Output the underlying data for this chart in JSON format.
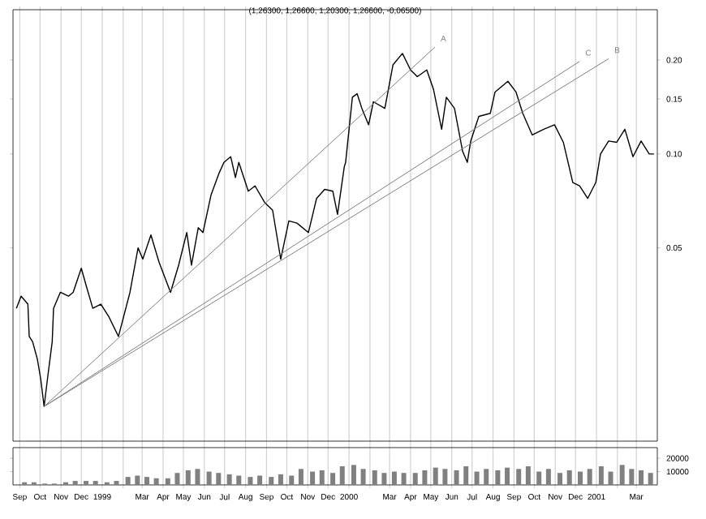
{
  "chart_data": [
    {
      "type": "line",
      "title": "(1,26300, 1,26600, 1,20300, 1,26600, -0,06500)",
      "xlim": [
        "1998-08-22",
        "2001-04-01"
      ],
      "ylim": [
        0.012,
        0.29
      ],
      "log": "y",
      "grid": "x",
      "tick_labels": "y",
      "yticks": [
        {
          "value": 0.05,
          "label": "0.05"
        },
        {
          "value": 0.1,
          "label": "0.10"
        },
        {
          "value": 0.15,
          "label": "0.15"
        },
        {
          "value": 0.2,
          "label": "0.20"
        }
      ],
      "xticks": [
        {
          "value": "1998-09-01",
          "label": null
        },
        {
          "value": "1998-10-01",
          "label": null
        },
        {
          "value": "1998-11-01",
          "label": null
        },
        {
          "value": "1998-12-01",
          "label": null
        },
        {
          "value": "1999-01-01",
          "label": null
        },
        {
          "value": "1999-02-01",
          "label": null
        },
        {
          "value": "1999-03-01",
          "label": null
        },
        {
          "value": "1999-04-01",
          "label": null
        },
        {
          "value": "1999-05-01",
          "label": null
        },
        {
          "value": "1999-06-01",
          "label": null
        },
        {
          "value": "1999-07-01",
          "label": null
        },
        {
          "value": "1999-08-01",
          "label": null
        },
        {
          "value": "1999-09-01",
          "label": null
        },
        {
          "value": "1999-10-01",
          "label": null
        },
        {
          "value": "1999-11-01",
          "label": null
        },
        {
          "value": "1999-12-01",
          "label": null
        },
        {
          "value": "2000-01-01",
          "label": null
        },
        {
          "value": "2000-02-01",
          "label": null
        },
        {
          "value": "2000-03-01",
          "label": null
        },
        {
          "value": "2000-04-01",
          "label": null
        },
        {
          "value": "2000-05-01",
          "label": null
        },
        {
          "value": "2000-06-01",
          "label": null
        },
        {
          "value": "2000-07-01",
          "label": null
        },
        {
          "value": "2000-08-01",
          "label": null
        },
        {
          "value": "2000-09-01",
          "label": null
        },
        {
          "value": "2000-10-01",
          "label": null
        },
        {
          "value": "2000-11-01",
          "label": null
        },
        {
          "value": "2000-12-01",
          "label": null
        },
        {
          "value": "2001-01-01",
          "label": null
        },
        {
          "value": "2001-02-01",
          "label": null
        },
        {
          "value": "2001-03-01",
          "label": null
        }
      ],
      "series": [
        {
          "color": "#000000",
          "x": [
            "1998-08-27",
            "1998-09-03",
            "1998-09-13",
            "1998-09-15",
            "1998-09-20",
            "1998-09-27",
            "1998-10-02",
            "1998-10-07",
            "1998-10-12",
            "1998-10-19",
            "1998-10-21",
            "1998-10-31",
            "1998-11-12",
            "1998-11-19",
            "1998-12-01",
            "1998-12-08",
            "1998-12-18",
            "1998-12-30",
            "1999-01-11",
            "1999-01-25",
            "1999-02-11",
            "1999-02-23",
            "1999-03-02",
            "1999-03-14",
            "1999-03-26",
            "1999-04-12",
            "1999-04-24",
            "1999-05-06",
            "1999-05-13",
            "1999-05-23",
            "1999-05-30",
            "1999-06-11",
            "1999-06-23",
            "1999-06-30",
            "1999-07-10",
            "1999-07-17",
            "1999-07-22",
            "1999-08-05",
            "1999-08-15",
            "1999-08-29",
            "1999-09-10",
            "1999-09-22",
            "1999-10-04",
            "1999-10-16",
            "1999-11-02",
            "1999-11-14",
            "1999-11-26",
            "1999-12-08",
            "1999-12-15",
            "1999-12-25",
            "1999-12-27",
            "2000-01-06",
            "2000-01-13",
            "2000-01-20",
            "2000-01-30",
            "2000-02-06",
            "2000-02-23",
            "2000-03-06",
            "2000-03-20",
            "2000-04-01",
            "2000-04-11",
            "2000-04-25",
            "2000-05-05",
            "2000-05-17",
            "2000-05-24",
            "2000-06-05",
            "2000-06-17",
            "2000-06-24",
            "2000-06-29",
            "2000-07-11",
            "2000-07-28",
            "2000-08-04",
            "2000-08-23",
            "2000-09-04",
            "2000-09-14",
            "2000-09-28",
            "2000-10-15",
            "2000-10-31",
            "2000-11-13",
            "2000-11-27",
            "2000-12-07",
            "2000-12-19",
            "2000-12-31",
            "2001-01-07",
            "2001-01-19",
            "2001-01-31",
            "2001-02-12",
            "2001-02-24",
            "2001-03-08",
            "2001-03-20",
            "2001-03-27"
          ],
          "values": [
            0.032,
            0.035,
            0.033,
            0.026,
            0.025,
            0.022,
            0.019,
            0.0155,
            0.019,
            0.025,
            0.032,
            0.036,
            0.035,
            0.036,
            0.043,
            0.038,
            0.032,
            0.033,
            0.03,
            0.026,
            0.036,
            0.05,
            0.046,
            0.055,
            0.045,
            0.036,
            0.044,
            0.056,
            0.044,
            0.058,
            0.056,
            0.074,
            0.087,
            0.094,
            0.098,
            0.084,
            0.094,
            0.076,
            0.079,
            0.07,
            0.066,
            0.046,
            0.061,
            0.06,
            0.056,
            0.072,
            0.077,
            0.076,
            0.064,
            0.091,
            0.094,
            0.152,
            0.156,
            0.14,
            0.124,
            0.147,
            0.14,
            0.193,
            0.21,
            0.186,
            0.177,
            0.186,
            0.161,
            0.12,
            0.152,
            0.14,
            0.102,
            0.094,
            0.11,
            0.132,
            0.135,
            0.158,
            0.171,
            0.158,
            0.135,
            0.115,
            0.12,
            0.124,
            0.109,
            0.081,
            0.079,
            0.072,
            0.081,
            0.1,
            0.11,
            0.109,
            0.12,
            0.098,
            0.11,
            0.1,
            0.1
          ]
        },
        {
          "name": "A",
          "color": "#808080",
          "x": [
            "1998-10-07",
            "2000-05-07"
          ],
          "values": [
            0.0155,
            0.22
          ]
        },
        {
          "name": "C",
          "color": "#808080",
          "x": [
            "1998-10-07",
            "2000-12-07"
          ],
          "values": [
            0.0155,
            0.198
          ]
        },
        {
          "name": "B",
          "color": "#808080",
          "x": [
            "1998-10-07",
            "2001-01-19"
          ],
          "values": [
            0.0155,
            0.202
          ]
        }
      ]
    },
    {
      "type": "bar",
      "color": "#808080",
      "xlim": [
        "1998-08-22",
        "2001-04-01"
      ],
      "ylim": [
        0,
        28000
      ],
      "yticks": [
        10000,
        20000
      ],
      "grid": "x",
      "xticks": [
        {
          "value": "1998-09-01",
          "label": "Sep"
        },
        {
          "value": "1998-10-01",
          "label": "Oct"
        },
        {
          "value": "1998-11-01",
          "label": "Nov"
        },
        {
          "value": "1998-12-01",
          "label": "Dec"
        },
        {
          "value": "1999-01-01",
          "label": "1999"
        },
        {
          "value": "1999-02-01",
          "label": null
        },
        {
          "value": "1999-03-01",
          "label": "Mar"
        },
        {
          "value": "1999-04-01",
          "label": "Apr"
        },
        {
          "value": "1999-05-01",
          "label": "May"
        },
        {
          "value": "1999-06-01",
          "label": "Jun"
        },
        {
          "value": "1999-07-01",
          "label": "Jul"
        },
        {
          "value": "1999-08-01",
          "label": "Aug"
        },
        {
          "value": "1999-09-01",
          "label": "Sep"
        },
        {
          "value": "1999-10-01",
          "label": "Oct"
        },
        {
          "value": "1999-11-01",
          "label": "Nov"
        },
        {
          "value": "1999-12-01",
          "label": "Dec"
        },
        {
          "value": "2000-01-01",
          "label": "2000"
        },
        {
          "value": "2000-02-01",
          "label": null
        },
        {
          "value": "2000-03-01",
          "label": "Mar"
        },
        {
          "value": "2000-04-01",
          "label": "Apr"
        },
        {
          "value": "2000-05-01",
          "label": "May"
        },
        {
          "value": "2000-06-01",
          "label": "Jun"
        },
        {
          "value": "2000-07-01",
          "label": "Jul"
        },
        {
          "value": "2000-08-01",
          "label": "Aug"
        },
        {
          "value": "2000-09-01",
          "label": "Sep"
        },
        {
          "value": "2000-10-01",
          "label": "Oct"
        },
        {
          "value": "2000-11-01",
          "label": "Nov"
        },
        {
          "value": "2000-12-01",
          "label": "Dec"
        },
        {
          "value": "2001-01-01",
          "label": "2001"
        },
        {
          "value": "2001-02-01",
          "label": null
        },
        {
          "value": "2001-03-01",
          "label": "Mar"
        }
      ],
      "x": [
        "1998-09-08",
        "1998-09-22",
        "1998-10-08",
        "1998-10-22",
        "1998-11-08",
        "1998-11-22",
        "1998-12-08",
        "1998-12-22",
        "1999-01-08",
        "1999-01-22",
        "1999-02-08",
        "1999-02-22",
        "1999-03-08",
        "1999-03-22",
        "1999-04-08",
        "1999-04-22",
        "1999-05-08",
        "1999-05-22",
        "1999-06-08",
        "1999-06-22",
        "1999-07-08",
        "1999-07-22",
        "1999-08-08",
        "1999-08-22",
        "1999-09-08",
        "1999-09-22",
        "1999-10-08",
        "1999-10-22",
        "1999-11-08",
        "1999-11-22",
        "1999-12-08",
        "1999-12-22",
        "2000-01-08",
        "2000-01-22",
        "2000-02-08",
        "2000-02-22",
        "2000-03-08",
        "2000-03-22",
        "2000-04-08",
        "2000-04-22",
        "2000-05-08",
        "2000-05-22",
        "2000-06-08",
        "2000-06-22",
        "2000-07-08",
        "2000-07-22",
        "2000-08-08",
        "2000-08-22",
        "2000-09-08",
        "2000-09-22",
        "2000-10-08",
        "2000-10-22",
        "2000-11-08",
        "2000-11-22",
        "2000-12-08",
        "2000-12-22",
        "2001-01-08",
        "2001-01-22",
        "2001-02-08",
        "2001-02-22",
        "2001-03-08",
        "2001-03-22"
      ],
      "values": [
        2000,
        2000,
        1000,
        1000,
        2000,
        3000,
        3000,
        3000,
        2000,
        3000,
        6000,
        7000,
        6000,
        5000,
        5000,
        9000,
        11000,
        12000,
        10000,
        9000,
        8000,
        7000,
        6000,
        7000,
        6000,
        8000,
        7000,
        12000,
        10000,
        11000,
        9000,
        14000,
        15000,
        12000,
        11000,
        9000,
        10000,
        9000,
        9000,
        11000,
        13000,
        12000,
        11000,
        14000,
        10000,
        12000,
        11000,
        13000,
        12000,
        14000,
        10000,
        12000,
        9000,
        11000,
        10000,
        12000,
        14000,
        10000,
        15000,
        12000,
        11000,
        9000
      ]
    }
  ]
}
